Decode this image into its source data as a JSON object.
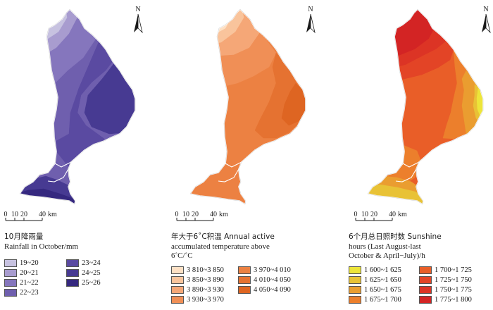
{
  "panels": [
    {
      "id": "rainfall",
      "north_label": "N",
      "scale": {
        "ticks": [
          "0",
          "10",
          "20",
          "40"
        ],
        "unit": "km"
      },
      "legend": {
        "title_line1": "10月降雨量",
        "title_line2": "Rainfall in October/mm",
        "title_line3": "",
        "classes": [
          "19~20",
          "20~21",
          "21~22",
          "22~23",
          "23~24",
          "24~25",
          "25~26"
        ],
        "colors": [
          "#c7c2e0",
          "#a89ccf",
          "#8576bd",
          "#6f5fae",
          "#5a4aa1",
          "#473a92",
          "#35287f"
        ]
      }
    },
    {
      "id": "temperature",
      "north_label": "N",
      "scale": {
        "ticks": [
          "0",
          "10",
          "20",
          "40"
        ],
        "unit": "km"
      },
      "legend": {
        "title_line1": "年大于6˚C积温 Annual active",
        "title_line2": "accumulated temperature above",
        "title_line3": "6˚C/˚C",
        "classes": [
          "3 810~3 850",
          "3 850~3 890",
          "3 890~3 930",
          "3 930~3 970",
          "3 970~4 010",
          "4 010~4 050",
          "4 050~4 090"
        ],
        "colors": [
          "#fde0c4",
          "#f9c49c",
          "#f5a777",
          "#f08f56",
          "#ec8142",
          "#e57231",
          "#de6522"
        ]
      }
    },
    {
      "id": "sunshine",
      "north_label": "N",
      "scale": {
        "ticks": [
          "0",
          "10",
          "20",
          "40"
        ],
        "unit": "km"
      },
      "legend": {
        "title_line1": "6个月总日照时数 Sunshine",
        "title_line2": "hours (Last August-last",
        "title_line3": "October & April−July)/h",
        "classes": [
          "1 600~1 625",
          "1 625~1 650",
          "1 650~1 675",
          "1 675~1 700",
          "1 700~1 725",
          "1 725~1 750",
          "1 750~1 775",
          "1 775~1 800"
        ],
        "colors": [
          "#ede53a",
          "#e8c236",
          "#ea9d30",
          "#ec7f2c",
          "#e95e28",
          "#e34426",
          "#dc3425",
          "#d32424"
        ]
      }
    }
  ]
}
